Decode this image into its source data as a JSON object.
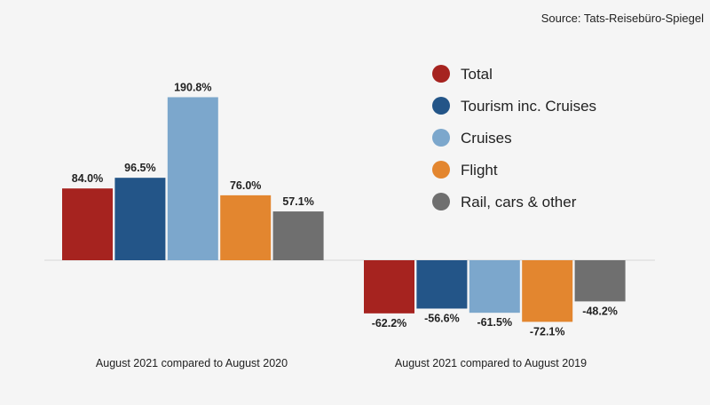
{
  "chart_data": {
    "type": "bar",
    "source": "Source: Tats-Reisebüro-Spiegel",
    "categories": [
      "August 2021 compared to August 2020",
      "August 2021 compared to August 2019"
    ],
    "series": [
      {
        "name": "Total",
        "color": "#a6231f",
        "values": [
          84.0,
          -62.2
        ],
        "labels": [
          "84.0%",
          "-62.2%"
        ]
      },
      {
        "name": "Tourism inc. Cruises",
        "color": "#235588",
        "values": [
          96.5,
          -56.6
        ],
        "labels": [
          "96.5%",
          "-56.6%"
        ]
      },
      {
        "name": "Cruises",
        "color": "#7ca7cc",
        "values": [
          190.8,
          -61.5
        ],
        "labels": [
          "190.8%",
          "-61.5%"
        ]
      },
      {
        "name": "Flight",
        "color": "#e3862f",
        "values": [
          76.0,
          -72.1
        ],
        "labels": [
          "76.0%",
          "-72.1%"
        ]
      },
      {
        "name": "Rail, cars & other",
        "color": "#6f6f6f",
        "values": [
          57.1,
          -48.2
        ],
        "labels": [
          "57.1%",
          "-48.2%"
        ]
      }
    ],
    "legend": "top-right",
    "grid": false
  }
}
